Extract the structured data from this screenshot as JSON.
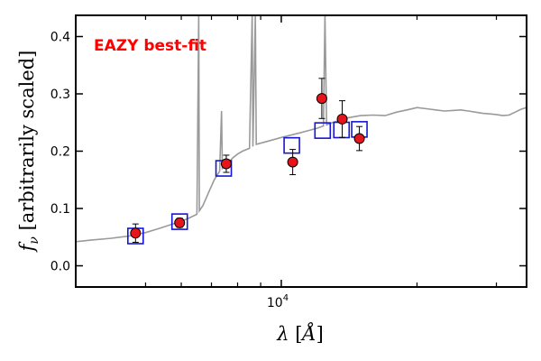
{
  "chart_data": {
    "type": "scatter",
    "annotation": "EAZY best-fit",
    "xlabel": "λ [Å]",
    "ylabel": "f_ν [arbitrarily scaled]",
    "xscale": "log",
    "xlim": [
      3500,
      35000
    ],
    "ylim": [
      -0.037,
      0.437
    ],
    "yticks": [
      0.0,
      0.1,
      0.2,
      0.3,
      0.4
    ],
    "ytick_labels": [
      "0.0",
      "0.1",
      "0.2",
      "0.3",
      "0.4"
    ],
    "xtick_major": [
      10000
    ],
    "xtick_major_label_base": "10",
    "xtick_major_label_exp": "4",
    "xtick_minor": [
      5000,
      6000,
      7000,
      8000,
      9000,
      20000,
      30000
    ],
    "grid": false,
    "colors": {
      "observed_fill": "#e8141b",
      "observed_edge": "#000000",
      "model_box": "#1515d6",
      "sed_line": "#9a9a9a",
      "annotation": "#ff0000"
    },
    "series": [
      {
        "kind": "line",
        "points": [
          [
            3500,
            0.042
          ],
          [
            3800,
            0.045
          ],
          [
            4200,
            0.048
          ],
          [
            4600,
            0.052
          ],
          [
            5000,
            0.058
          ],
          [
            5400,
            0.066
          ],
          [
            5800,
            0.074
          ],
          [
            6200,
            0.082
          ],
          [
            6500,
            0.09
          ],
          [
            6560,
            0.44
          ],
          [
            6580,
            0.096
          ],
          [
            6700,
            0.105
          ],
          [
            6900,
            0.128
          ],
          [
            7100,
            0.15
          ],
          [
            7300,
            0.165
          ],
          [
            7370,
            0.27
          ],
          [
            7400,
            0.17
          ],
          [
            7600,
            0.178
          ],
          [
            7800,
            0.188
          ],
          [
            8000,
            0.195
          ],
          [
            8200,
            0.2
          ],
          [
            8500,
            0.205
          ],
          [
            8620,
            0.44
          ],
          [
            8650,
            0.208
          ],
          [
            8760,
            0.44
          ],
          [
            8800,
            0.212
          ],
          [
            9200,
            0.216
          ],
          [
            9600,
            0.22
          ],
          [
            10000,
            0.224
          ],
          [
            10500,
            0.228
          ],
          [
            11000,
            0.232
          ],
          [
            11500,
            0.236
          ],
          [
            12000,
            0.24
          ],
          [
            12400,
            0.244
          ],
          [
            12500,
            0.44
          ],
          [
            12600,
            0.246
          ],
          [
            13000,
            0.25
          ],
          [
            13500,
            0.254
          ],
          [
            14000,
            0.258
          ],
          [
            15000,
            0.262
          ],
          [
            16000,
            0.263
          ],
          [
            17000,
            0.262
          ],
          [
            18000,
            0.268
          ],
          [
            19000,
            0.272
          ],
          [
            20000,
            0.276
          ],
          [
            21000,
            0.274
          ],
          [
            22000,
            0.272
          ],
          [
            23000,
            0.27
          ],
          [
            24000,
            0.271
          ],
          [
            25000,
            0.272
          ],
          [
            26000,
            0.27
          ],
          [
            27000,
            0.268
          ],
          [
            28000,
            0.266
          ],
          [
            29000,
            0.265
          ],
          [
            30000,
            0.264
          ],
          [
            31000,
            0.262
          ],
          [
            32000,
            0.263
          ],
          [
            33000,
            0.268
          ],
          [
            34000,
            0.273
          ],
          [
            35000,
            0.276
          ]
        ]
      },
      {
        "kind": "observed",
        "points": [
          {
            "x": 4750,
            "y": 0.057,
            "err": 0.016
          },
          {
            "x": 5950,
            "y": 0.075,
            "err": 0.008
          },
          {
            "x": 7550,
            "y": 0.178,
            "err": 0.015
          },
          {
            "x": 10600,
            "y": 0.181,
            "err": 0.022
          },
          {
            "x": 12300,
            "y": 0.292,
            "err": 0.035
          },
          {
            "x": 13650,
            "y": 0.256,
            "err": 0.032
          },
          {
            "x": 14900,
            "y": 0.222,
            "err": 0.021
          }
        ]
      },
      {
        "kind": "model",
        "points": [
          {
            "x": 4750,
            "y": 0.052
          },
          {
            "x": 5950,
            "y": 0.077
          },
          {
            "x": 7450,
            "y": 0.17
          },
          {
            "x": 10550,
            "y": 0.21
          },
          {
            "x": 12350,
            "y": 0.236
          },
          {
            "x": 13600,
            "y": 0.237
          },
          {
            "x": 14900,
            "y": 0.238
          }
        ]
      }
    ]
  }
}
